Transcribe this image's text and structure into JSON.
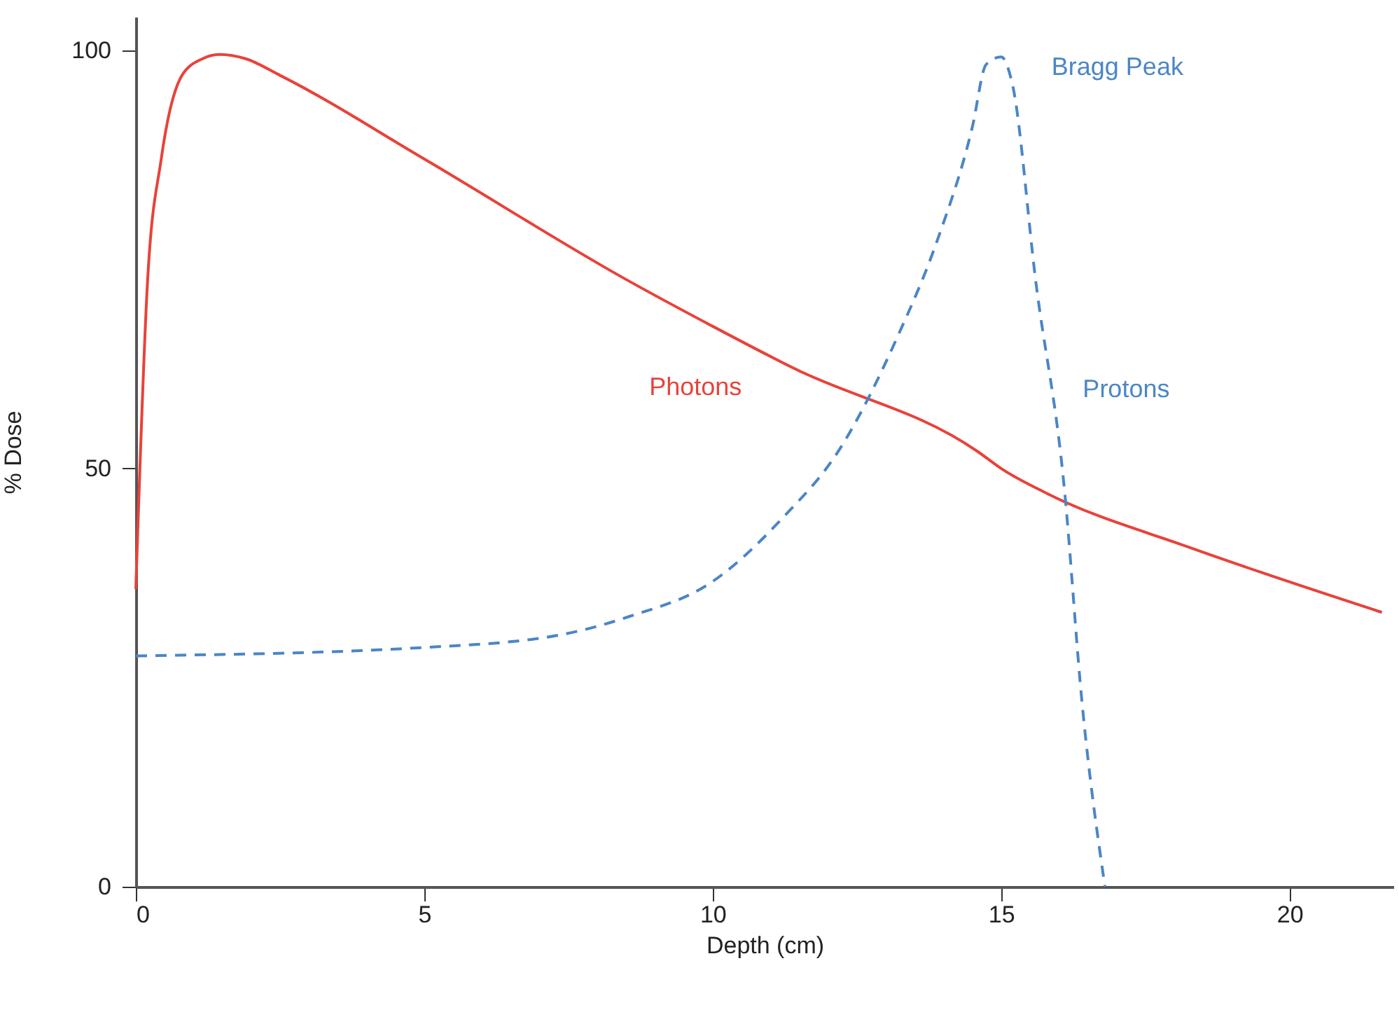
{
  "chart_data": {
    "type": "line",
    "xlabel": "Depth (cm)",
    "ylabel": "% Dose",
    "xlim": [
      0,
      21.8
    ],
    "ylim": [
      0,
      104
    ],
    "xticks": [
      0,
      5,
      10,
      15,
      20
    ],
    "yticks": [
      0,
      50,
      100
    ],
    "grid": false,
    "legend": false,
    "marker": "none",
    "series": [
      {
        "name": "Photons",
        "color": "#e8423a",
        "line_style": "solid",
        "x": [
          0,
          0.2,
          0.44,
          0.8,
          1.16,
          1.45,
          1.9,
          2.5,
          5,
          8.55,
          10,
          11.4,
          14.6,
          15,
          15.8,
          18.25,
          19.5,
          21.6
        ],
        "values": [
          35.6,
          72,
          87,
          97,
          99,
          99.5,
          99,
          97,
          87,
          72.4,
          67,
          62,
          52,
          50,
          47,
          40.6,
          37.6,
          32.8
        ]
      },
      {
        "name": "Protons",
        "color": "#4a86c5",
        "line_style": "dashed",
        "x": [
          0,
          5,
          7.35,
          8.55,
          10,
          11.2,
          12.2,
          13.2,
          13.9,
          14.5,
          14.74,
          15,
          15.2,
          15.6,
          16.1,
          16.4,
          16.8
        ],
        "values": [
          27.6,
          28.6,
          30.1,
          32.3,
          36.5,
          44,
          52.3,
          65.7,
          77.4,
          90.8,
          98.3,
          99.2,
          95.8,
          72.4,
          47.3,
          22.2,
          0
        ]
      }
    ],
    "annotations": [
      {
        "text": "Bragg Peak",
        "x": 15,
        "y": 99.2
      }
    ]
  }
}
